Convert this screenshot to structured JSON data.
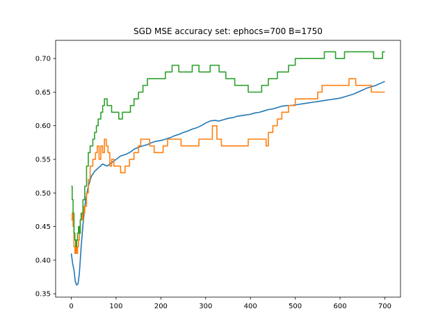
{
  "chart_data": {
    "type": "line",
    "title": "SGD MSE accuracy set: ephocs=700 B=1750",
    "xlabel": "",
    "ylabel": "",
    "xlim": [
      -35,
      735
    ],
    "ylim": [
      0.345,
      0.727
    ],
    "xticks": [
      0,
      100,
      200,
      300,
      400,
      500,
      600,
      700
    ],
    "xtick_labels": [
      "0",
      "100",
      "200",
      "300",
      "400",
      "500",
      "600",
      "700"
    ],
    "yticks": [
      0.35,
      0.4,
      0.45,
      0.5,
      0.55,
      0.6,
      0.65,
      0.7
    ],
    "ytick_labels": [
      "0.35",
      "0.40",
      "0.45",
      "0.50",
      "0.55",
      "0.60",
      "0.65",
      "0.70"
    ],
    "grid": false,
    "legend": "none",
    "series": [
      {
        "color": "#1f77b4",
        "step": false,
        "points": [
          [
            0,
            0.41
          ],
          [
            3,
            0.395
          ],
          [
            6,
            0.385
          ],
          [
            9,
            0.368
          ],
          [
            12,
            0.363
          ],
          [
            15,
            0.365
          ],
          [
            18,
            0.38
          ],
          [
            22,
            0.42
          ],
          [
            27,
            0.46
          ],
          [
            32,
            0.49
          ],
          [
            38,
            0.51
          ],
          [
            45,
            0.525
          ],
          [
            52,
            0.532
          ],
          [
            60,
            0.537
          ],
          [
            70,
            0.543
          ],
          [
            80,
            0.54
          ],
          [
            90,
            0.545
          ],
          [
            100,
            0.55
          ],
          [
            110,
            0.555
          ],
          [
            120,
            0.557
          ],
          [
            130,
            0.56
          ],
          [
            140,
            0.565
          ],
          [
            150,
            0.568
          ],
          [
            160,
            0.57
          ],
          [
            170,
            0.572
          ],
          [
            180,
            0.575
          ],
          [
            190,
            0.577
          ],
          [
            200,
            0.578
          ],
          [
            210,
            0.58
          ],
          [
            220,
            0.582
          ],
          [
            230,
            0.585
          ],
          [
            240,
            0.587
          ],
          [
            250,
            0.59
          ],
          [
            260,
            0.592
          ],
          [
            270,
            0.595
          ],
          [
            280,
            0.597
          ],
          [
            290,
            0.6
          ],
          [
            300,
            0.604
          ],
          [
            310,
            0.607
          ],
          [
            320,
            0.608
          ],
          [
            330,
            0.607
          ],
          [
            340,
            0.609
          ],
          [
            350,
            0.611
          ],
          [
            360,
            0.612
          ],
          [
            370,
            0.614
          ],
          [
            380,
            0.615
          ],
          [
            390,
            0.616
          ],
          [
            400,
            0.617
          ],
          [
            410,
            0.619
          ],
          [
            420,
            0.62
          ],
          [
            430,
            0.622
          ],
          [
            440,
            0.624
          ],
          [
            450,
            0.625
          ],
          [
            460,
            0.627
          ],
          [
            470,
            0.629
          ],
          [
            480,
            0.63
          ],
          [
            490,
            0.63
          ],
          [
            500,
            0.631
          ],
          [
            510,
            0.632
          ],
          [
            520,
            0.633
          ],
          [
            530,
            0.634
          ],
          [
            540,
            0.635
          ],
          [
            550,
            0.636
          ],
          [
            560,
            0.637
          ],
          [
            570,
            0.638
          ],
          [
            580,
            0.639
          ],
          [
            590,
            0.64
          ],
          [
            600,
            0.641
          ],
          [
            610,
            0.643
          ],
          [
            620,
            0.645
          ],
          [
            630,
            0.647
          ],
          [
            640,
            0.65
          ],
          [
            650,
            0.653
          ],
          [
            660,
            0.656
          ],
          [
            670,
            0.658
          ],
          [
            680,
            0.66
          ],
          [
            690,
            0.663
          ],
          [
            700,
            0.666
          ]
        ]
      },
      {
        "color": "#ff7f0e",
        "step": true,
        "points": [
          [
            0,
            0.46
          ],
          [
            2,
            0.47
          ],
          [
            4,
            0.45
          ],
          [
            6,
            0.42
          ],
          [
            8,
            0.41
          ],
          [
            10,
            0.43
          ],
          [
            12,
            0.41
          ],
          [
            14,
            0.42
          ],
          [
            16,
            0.43
          ],
          [
            18,
            0.44
          ],
          [
            20,
            0.46
          ],
          [
            22,
            0.47
          ],
          [
            24,
            0.46
          ],
          [
            26,
            0.48
          ],
          [
            28,
            0.47
          ],
          [
            30,
            0.48
          ],
          [
            34,
            0.5
          ],
          [
            38,
            0.52
          ],
          [
            42,
            0.54
          ],
          [
            48,
            0.55
          ],
          [
            54,
            0.56
          ],
          [
            58,
            0.57
          ],
          [
            62,
            0.55
          ],
          [
            66,
            0.57
          ],
          [
            70,
            0.56
          ],
          [
            74,
            0.58
          ],
          [
            78,
            0.57
          ],
          [
            82,
            0.56
          ],
          [
            86,
            0.54
          ],
          [
            90,
            0.55
          ],
          [
            95,
            0.54
          ],
          [
            100,
            0.54
          ],
          [
            110,
            0.53
          ],
          [
            120,
            0.54
          ],
          [
            130,
            0.55
          ],
          [
            140,
            0.56
          ],
          [
            150,
            0.57
          ],
          [
            155,
            0.58
          ],
          [
            175,
            0.57
          ],
          [
            185,
            0.56
          ],
          [
            205,
            0.57
          ],
          [
            215,
            0.58
          ],
          [
            245,
            0.57
          ],
          [
            285,
            0.58
          ],
          [
            315,
            0.6
          ],
          [
            325,
            0.58
          ],
          [
            335,
            0.57
          ],
          [
            395,
            0.58
          ],
          [
            435,
            0.57
          ],
          [
            440,
            0.59
          ],
          [
            450,
            0.6
          ],
          [
            460,
            0.61
          ],
          [
            470,
            0.62
          ],
          [
            485,
            0.63
          ],
          [
            500,
            0.64
          ],
          [
            550,
            0.65
          ],
          [
            560,
            0.66
          ],
          [
            620,
            0.67
          ],
          [
            635,
            0.66
          ],
          [
            670,
            0.65
          ],
          [
            700,
            0.65
          ]
        ]
      },
      {
        "color": "#2ca02c",
        "step": true,
        "points": [
          [
            0,
            0.51
          ],
          [
            2,
            0.49
          ],
          [
            4,
            0.47
          ],
          [
            6,
            0.44
          ],
          [
            8,
            0.43
          ],
          [
            10,
            0.42
          ],
          [
            12,
            0.43
          ],
          [
            14,
            0.44
          ],
          [
            16,
            0.45
          ],
          [
            18,
            0.44
          ],
          [
            20,
            0.46
          ],
          [
            22,
            0.47
          ],
          [
            26,
            0.49
          ],
          [
            30,
            0.51
          ],
          [
            34,
            0.54
          ],
          [
            38,
            0.56
          ],
          [
            42,
            0.57
          ],
          [
            48,
            0.58
          ],
          [
            52,
            0.59
          ],
          [
            56,
            0.6
          ],
          [
            60,
            0.61
          ],
          [
            66,
            0.62
          ],
          [
            70,
            0.63
          ],
          [
            74,
            0.64
          ],
          [
            80,
            0.63
          ],
          [
            90,
            0.62
          ],
          [
            100,
            0.62
          ],
          [
            106,
            0.61
          ],
          [
            114,
            0.62
          ],
          [
            120,
            0.62
          ],
          [
            126,
            0.62
          ],
          [
            132,
            0.63
          ],
          [
            140,
            0.64
          ],
          [
            150,
            0.65
          ],
          [
            160,
            0.66
          ],
          [
            170,
            0.67
          ],
          [
            210,
            0.68
          ],
          [
            225,
            0.69
          ],
          [
            240,
            0.68
          ],
          [
            270,
            0.69
          ],
          [
            285,
            0.68
          ],
          [
            300,
            0.68
          ],
          [
            310,
            0.69
          ],
          [
            330,
            0.68
          ],
          [
            345,
            0.67
          ],
          [
            365,
            0.66
          ],
          [
            395,
            0.65
          ],
          [
            425,
            0.66
          ],
          [
            440,
            0.67
          ],
          [
            460,
            0.68
          ],
          [
            485,
            0.69
          ],
          [
            500,
            0.7
          ],
          [
            540,
            0.7
          ],
          [
            565,
            0.71
          ],
          [
            590,
            0.7
          ],
          [
            610,
            0.71
          ],
          [
            640,
            0.71
          ],
          [
            675,
            0.7
          ],
          [
            695,
            0.71
          ],
          [
            700,
            0.71
          ]
        ]
      }
    ]
  }
}
